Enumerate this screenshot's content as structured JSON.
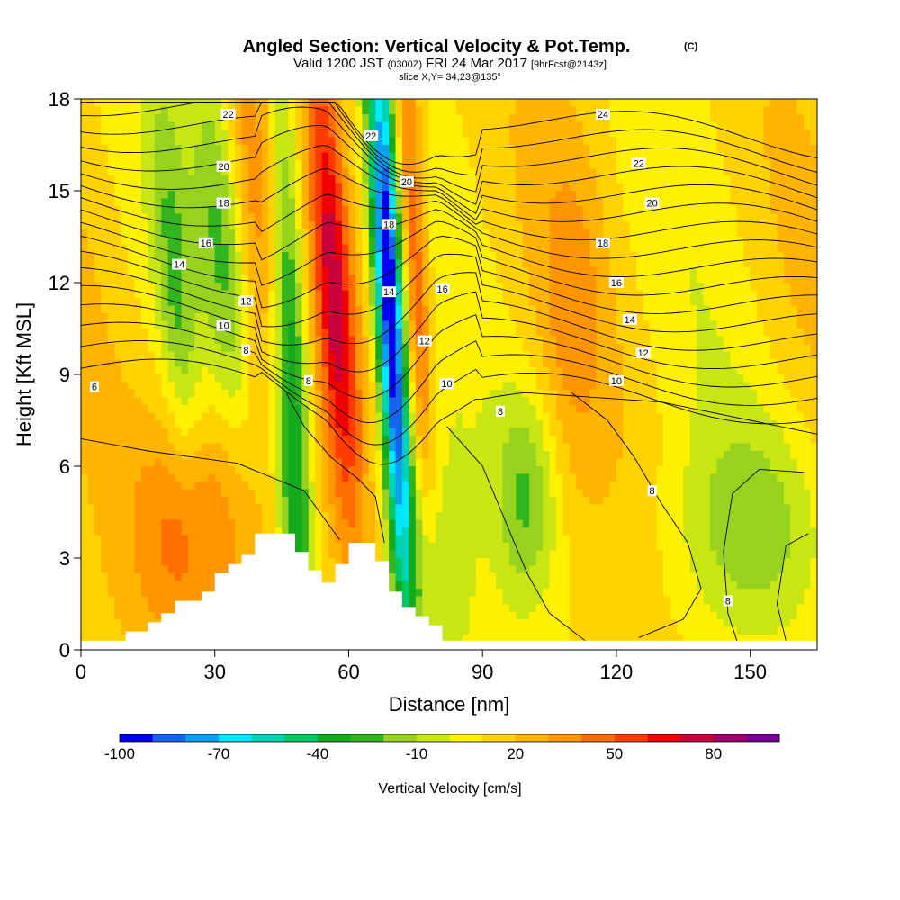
{
  "chart_data": {
    "type": "contour",
    "title": "Angled Section: Vertical Velocity & Pot.Temp.",
    "title_mark": "(C)",
    "subtitle": {
      "valid": "Valid 1200 JST",
      "zulu": "(0300Z)",
      "date": "FRI 24 Mar 2017",
      "fcst": "[9hrFcst@2143z]"
    },
    "slice_label": "slice X,Y= 34,23@135°",
    "xlabel": "Distance [nm]",
    "ylabel": "Height [Kft MSL]",
    "xlim": [
      0,
      165
    ],
    "ylim": [
      0,
      18
    ],
    "xticks": [
      0,
      30,
      60,
      90,
      120,
      150
    ],
    "yticks": [
      0,
      3,
      6,
      9,
      12,
      15,
      18
    ],
    "colorbar": {
      "label": "Vertical Velocity [cm/s]",
      "ticks": [
        -100,
        -70,
        -40,
        -10,
        20,
        50,
        80
      ],
      "levels": [
        -100,
        -90,
        -80,
        -70,
        -60,
        -50,
        -40,
        -30,
        -20,
        -10,
        0,
        10,
        20,
        30,
        40,
        50,
        60,
        70,
        80,
        90,
        100
      ],
      "colors": [
        "#0000f0",
        "#1464f0",
        "#0aa0f0",
        "#00e6ff",
        "#00d2b4",
        "#00c864",
        "#14aa1e",
        "#32b41e",
        "#96d21e",
        "#c8e614",
        "#fff000",
        "#ffd200",
        "#ffb400",
        "#ff9600",
        "#ff6e00",
        "#ff3c00",
        "#f00000",
        "#c8003c",
        "#a0006e",
        "#780096"
      ]
    },
    "contour_field": "Pot.Temp. (C)",
    "contour_levels": [
      6,
      8,
      10,
      12,
      14,
      16,
      18,
      20,
      22,
      24
    ],
    "contour_labels": [
      {
        "value": "6",
        "x": 3,
        "y": 8.6
      },
      {
        "value": "8",
        "x": 37,
        "y": 9.8
      },
      {
        "value": "10",
        "x": 32,
        "y": 10.6
      },
      {
        "value": "12",
        "x": 37,
        "y": 11.4
      },
      {
        "value": "14",
        "x": 22,
        "y": 12.6
      },
      {
        "value": "16",
        "x": 28,
        "y": 13.3
      },
      {
        "value": "18",
        "x": 32,
        "y": 14.6
      },
      {
        "value": "20",
        "x": 32,
        "y": 15.8
      },
      {
        "value": "22",
        "x": 33,
        "y": 17.5
      },
      {
        "value": "8",
        "x": 51,
        "y": 8.8
      },
      {
        "value": "22",
        "x": 65,
        "y": 16.8
      },
      {
        "value": "20",
        "x": 73,
        "y": 15.3
      },
      {
        "value": "18",
        "x": 69,
        "y": 13.9
      },
      {
        "value": "14",
        "x": 69,
        "y": 11.7
      },
      {
        "value": "12",
        "x": 77,
        "y": 10.1
      },
      {
        "value": "16",
        "x": 81,
        "y": 11.8
      },
      {
        "value": "10",
        "x": 82,
        "y": 8.7
      },
      {
        "value": "8",
        "x": 94,
        "y": 7.8
      },
      {
        "value": "24",
        "x": 117,
        "y": 17.5
      },
      {
        "value": "22",
        "x": 125,
        "y": 15.9
      },
      {
        "value": "20",
        "x": 128,
        "y": 14.6
      },
      {
        "value": "18",
        "x": 117,
        "y": 13.3
      },
      {
        "value": "16",
        "x": 120,
        "y": 12.0
      },
      {
        "value": "14",
        "x": 123,
        "y": 10.8
      },
      {
        "value": "12",
        "x": 126,
        "y": 9.7
      },
      {
        "value": "10",
        "x": 120,
        "y": 8.8
      },
      {
        "value": "8",
        "x": 128,
        "y": 5.2
      },
      {
        "value": "8",
        "x": 145,
        "y": 1.6
      }
    ],
    "terrain_nm_kft": [
      [
        0,
        0.3
      ],
      [
        10,
        0.3
      ],
      [
        10,
        0.6
      ],
      [
        15,
        0.6
      ],
      [
        15,
        0.9
      ],
      [
        18,
        0.9
      ],
      [
        18,
        1.2
      ],
      [
        21,
        1.2
      ],
      [
        21,
        1.6
      ],
      [
        27,
        1.6
      ],
      [
        27,
        1.9
      ],
      [
        30,
        1.9
      ],
      [
        30,
        2.5
      ],
      [
        33,
        2.5
      ],
      [
        33,
        2.8
      ],
      [
        36,
        2.8
      ],
      [
        36,
        3.1
      ],
      [
        39,
        3.1
      ],
      [
        39,
        3.8
      ],
      [
        48,
        3.8
      ],
      [
        48,
        3.2
      ],
      [
        51,
        3.2
      ],
      [
        51,
        2.6
      ],
      [
        54,
        2.6
      ],
      [
        54,
        2.2
      ],
      [
        57,
        2.2
      ],
      [
        57,
        2.8
      ],
      [
        60,
        2.8
      ],
      [
        60,
        3.5
      ],
      [
        66,
        3.5
      ],
      [
        66,
        2.9
      ],
      [
        69,
        2.9
      ],
      [
        69,
        1.9
      ],
      [
        72,
        1.9
      ],
      [
        72,
        1.4
      ],
      [
        75,
        1.4
      ],
      [
        75,
        1.1
      ],
      [
        78,
        1.1
      ],
      [
        78,
        0.8
      ],
      [
        81,
        0.8
      ],
      [
        81,
        0.3
      ],
      [
        165,
        0.3
      ]
    ]
  }
}
